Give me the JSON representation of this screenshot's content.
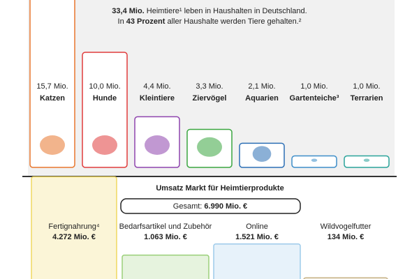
{
  "chart_data": [
    {
      "type": "bar",
      "subtitle": [
        [
          "33,4 Mio.",
          " Heimtiere¹ leben in Haushalten in Deutschland."
        ],
        [
          "In ",
          "43 Prozent",
          " aller Haushalte werden Tiere gehalten.²"
        ]
      ],
      "categories": [
        "Katzen",
        "Hunde",
        "Kleintiere",
        "Ziervögel",
        "Aquarien",
        "Gartenteiche³",
        "Terrarien"
      ],
      "values": [
        15.7,
        10.0,
        4.4,
        3.3,
        2.1,
        1.0,
        1.0
      ],
      "value_labels": [
        "15,7 Mio.",
        "10,0 Mio.",
        "4,4 Mio.",
        "3,3 Mio.",
        "2,1 Mio.",
        "1,0 Mio.",
        "1,0 Mio."
      ],
      "colors": [
        "#e8772e",
        "#e03c3c",
        "#8e44ad",
        "#3aa640",
        "#2c6fb5",
        "#3d8ec9",
        "#2aa39a"
      ]
    },
    {
      "type": "bar",
      "title": "Umsatz Markt für Heimtierprodukte",
      "subtitle": [
        "Gesamt: ",
        "6.990 Mio. €"
      ],
      "categories": [
        "Fertignahrung⁴",
        "Bedarfsartikel und Zubehör",
        "Online",
        "Wildvogelfutter"
      ],
      "values": [
        4272,
        1063,
        1521,
        134
      ],
      "value_labels": [
        "4.272 Mio. €",
        "1.063 Mio. €",
        "1.521 Mio. €",
        "134 Mio. €"
      ],
      "colors": [
        "#f0d860",
        "#9bd07a",
        "#9ecbea",
        "#c9b48a"
      ]
    }
  ]
}
